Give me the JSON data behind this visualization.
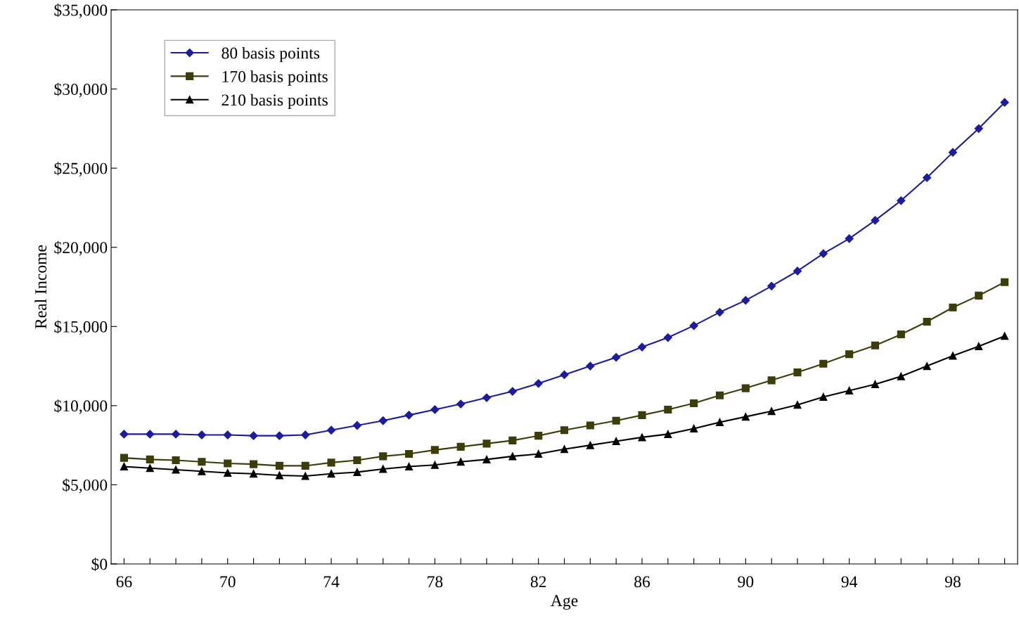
{
  "chart_data": {
    "type": "line",
    "xlabel": "Age",
    "ylabel": "Real Income",
    "categories": [
      "66",
      null,
      null,
      null,
      "70",
      null,
      null,
      null,
      "74",
      null,
      null,
      null,
      "78",
      null,
      null,
      null,
      "82",
      null,
      null,
      null,
      "86",
      null,
      null,
      null,
      "90",
      null,
      null,
      null,
      "94",
      null,
      null,
      null,
      "98",
      null,
      null
    ],
    "series": [
      {
        "name": "80 basis points",
        "color": "#1c1c9c",
        "marker": "diamond",
        "values": [
          8200,
          8200,
          8200,
          8150,
          8150,
          8100,
          8100,
          8150,
          8450,
          8750,
          9050,
          9400,
          9750,
          10100,
          10500,
          10900,
          11400,
          11950,
          12500,
          13050,
          13700,
          14300,
          15050,
          15900,
          16650,
          17550,
          18500,
          19600,
          20550,
          21700,
          22950,
          24400,
          26000,
          27500,
          29150
        ]
      },
      {
        "name": "170 basis points",
        "color": "#3d3d0a",
        "marker": "square",
        "values": [
          6700,
          6600,
          6550,
          6450,
          6350,
          6300,
          6200,
          6200,
          6400,
          6550,
          6800,
          6950,
          7200,
          7400,
          7600,
          7800,
          8100,
          8450,
          8750,
          9050,
          9400,
          9750,
          10150,
          10650,
          11100,
          11600,
          12100,
          12650,
          13250,
          13800,
          14500,
          15300,
          16200,
          16950,
          17800
        ]
      },
      {
        "name": "210 basis points",
        "color": "#000000",
        "marker": "triangle",
        "values": [
          6150,
          6050,
          5950,
          5850,
          5750,
          5700,
          5600,
          5550,
          5700,
          5800,
          6000,
          6150,
          6250,
          6450,
          6600,
          6800,
          6950,
          7250,
          7500,
          7750,
          8000,
          8200,
          8550,
          8950,
          9300,
          9650,
          10050,
          10550,
          10950,
          11350,
          11850,
          12500,
          13150,
          13750,
          14400
        ]
      }
    ],
    "ylim": [
      0,
      35000
    ],
    "yticks": [
      {
        "value": 0,
        "label": "$0"
      },
      {
        "value": 5000,
        "label": "$5,000"
      },
      {
        "value": 10000,
        "label": "$10,000"
      },
      {
        "value": 15000,
        "label": "$15,000"
      },
      {
        "value": 20000,
        "label": "$20,000"
      },
      {
        "value": 25000,
        "label": "$25,000"
      },
      {
        "value": 30000,
        "label": "$30,000"
      },
      {
        "value": 35000,
        "label": "$35,000"
      }
    ],
    "grid": false,
    "legend": "top left",
    "line_style": "solid"
  }
}
